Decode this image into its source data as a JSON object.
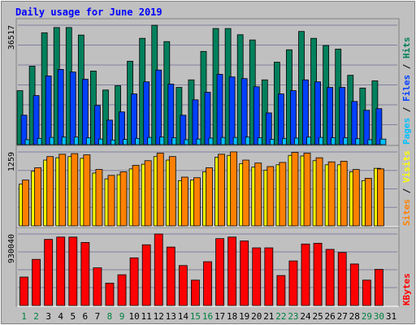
{
  "chart_data": {
    "type": "bar",
    "title": "Daily usage for June 2019",
    "colors": {
      "background": "#c0c0c0",
      "title": "#0000ff",
      "hits": "#00805c",
      "files": "#0040ff",
      "pages": "#00c0ff",
      "visits": "#ffff00",
      "sites": "#ff8000",
      "kbytes": "#ff0000",
      "weekend_day": "#008040",
      "weekday": "#000000",
      "grid": "#8080a0"
    },
    "days": [
      "1",
      "2",
      "3",
      "4",
      "5",
      "6",
      "7",
      "8",
      "9",
      "10",
      "11",
      "12",
      "13",
      "14",
      "15",
      "16",
      "17",
      "18",
      "19",
      "20",
      "21",
      "22",
      "23",
      "24",
      "25",
      "26",
      "27",
      "28",
      "29",
      "30",
      "31"
    ],
    "weekend_days": [
      "1",
      "2",
      "8",
      "9",
      "15",
      "16",
      "22",
      "23",
      "29",
      "30"
    ],
    "panels": [
      {
        "id": "hits",
        "ymax_label": "36517",
        "ymax": 36517,
        "series_labels": [
          "Pages",
          "Files",
          "Hits"
        ],
        "series": [
          {
            "name": "Hits",
            "values": [
              16500,
              24000,
              34200,
              35800,
              35800,
              33500,
              22500,
              16700,
              18000,
              25500,
              32500,
              36500,
              31500,
              17500,
              19800,
              28500,
              35500,
              35500,
              33600,
              32000,
              19800,
              25200,
              29000,
              34600,
              32500,
              30300,
              29200,
              21200,
              17300,
              19500,
              0
            ]
          },
          {
            "name": "Files",
            "values": [
              9000,
              15000,
              21000,
              23000,
              22200,
              20000,
              12000,
              7500,
              10000,
              15500,
              19200,
              22800,
              18500,
              9000,
              13700,
              16000,
              21500,
              20700,
              20200,
              17700,
              9700,
              15500,
              16500,
              19800,
              19200,
              17500,
              17500,
              13200,
              10500,
              11000,
              0
            ]
          },
          {
            "name": "Pages",
            "values": [
              1500,
              1900,
              2200,
              2300,
              2300,
              2100,
              1700,
              1400,
              1600,
              1900,
              2200,
              2300,
              2100,
              1500,
              1700,
              2000,
              2200,
              2200,
              2300,
              2100,
              1600,
              1900,
              2000,
              2300,
              2200,
              2100,
              2100,
              1800,
              1500,
              1700,
              0
            ]
          }
        ]
      },
      {
        "id": "visits",
        "ymax_label": "1259",
        "ymax": 1259,
        "series_labels": [
          "Sites",
          "Visits"
        ],
        "series": [
          {
            "name": "Visits",
            "values": [
              710,
              930,
              1120,
              1160,
              1180,
              1150,
              900,
              800,
              870,
              970,
              1050,
              1180,
              1120,
              770,
              780,
              920,
              1170,
              1200,
              1060,
              1000,
              950,
              1040,
              1200,
              1190,
              1110,
              1040,
              1040,
              920,
              770,
              980,
              0
            ]
          },
          {
            "name": "Sites",
            "values": [
              780,
              990,
              1180,
              1220,
              1230,
              1210,
              960,
              860,
              920,
              1030,
              1110,
              1240,
              1180,
              830,
              820,
              990,
              1220,
              1260,
              1120,
              1070,
              1010,
              1080,
              1250,
              1240,
              1160,
              1090,
              1100,
              960,
              810,
              970,
              0
            ]
          }
        ]
      },
      {
        "id": "kbytes",
        "ymax_label": "930040",
        "ymax": 930040,
        "series_labels": [
          "KBytes"
        ],
        "series": [
          {
            "name": "KBytes",
            "values": [
              370000,
              600000,
              860000,
              890000,
              890000,
              820000,
              490000,
              290000,
              400000,
              620000,
              790000,
              930000,
              760000,
              520000,
              330000,
              570000,
              870000,
              890000,
              840000,
              750000,
              750000,
              390000,
              580000,
              800000,
              810000,
              730000,
              690000,
              540000,
              330000,
              470000,
              0
            ]
          }
        ]
      }
    ]
  }
}
